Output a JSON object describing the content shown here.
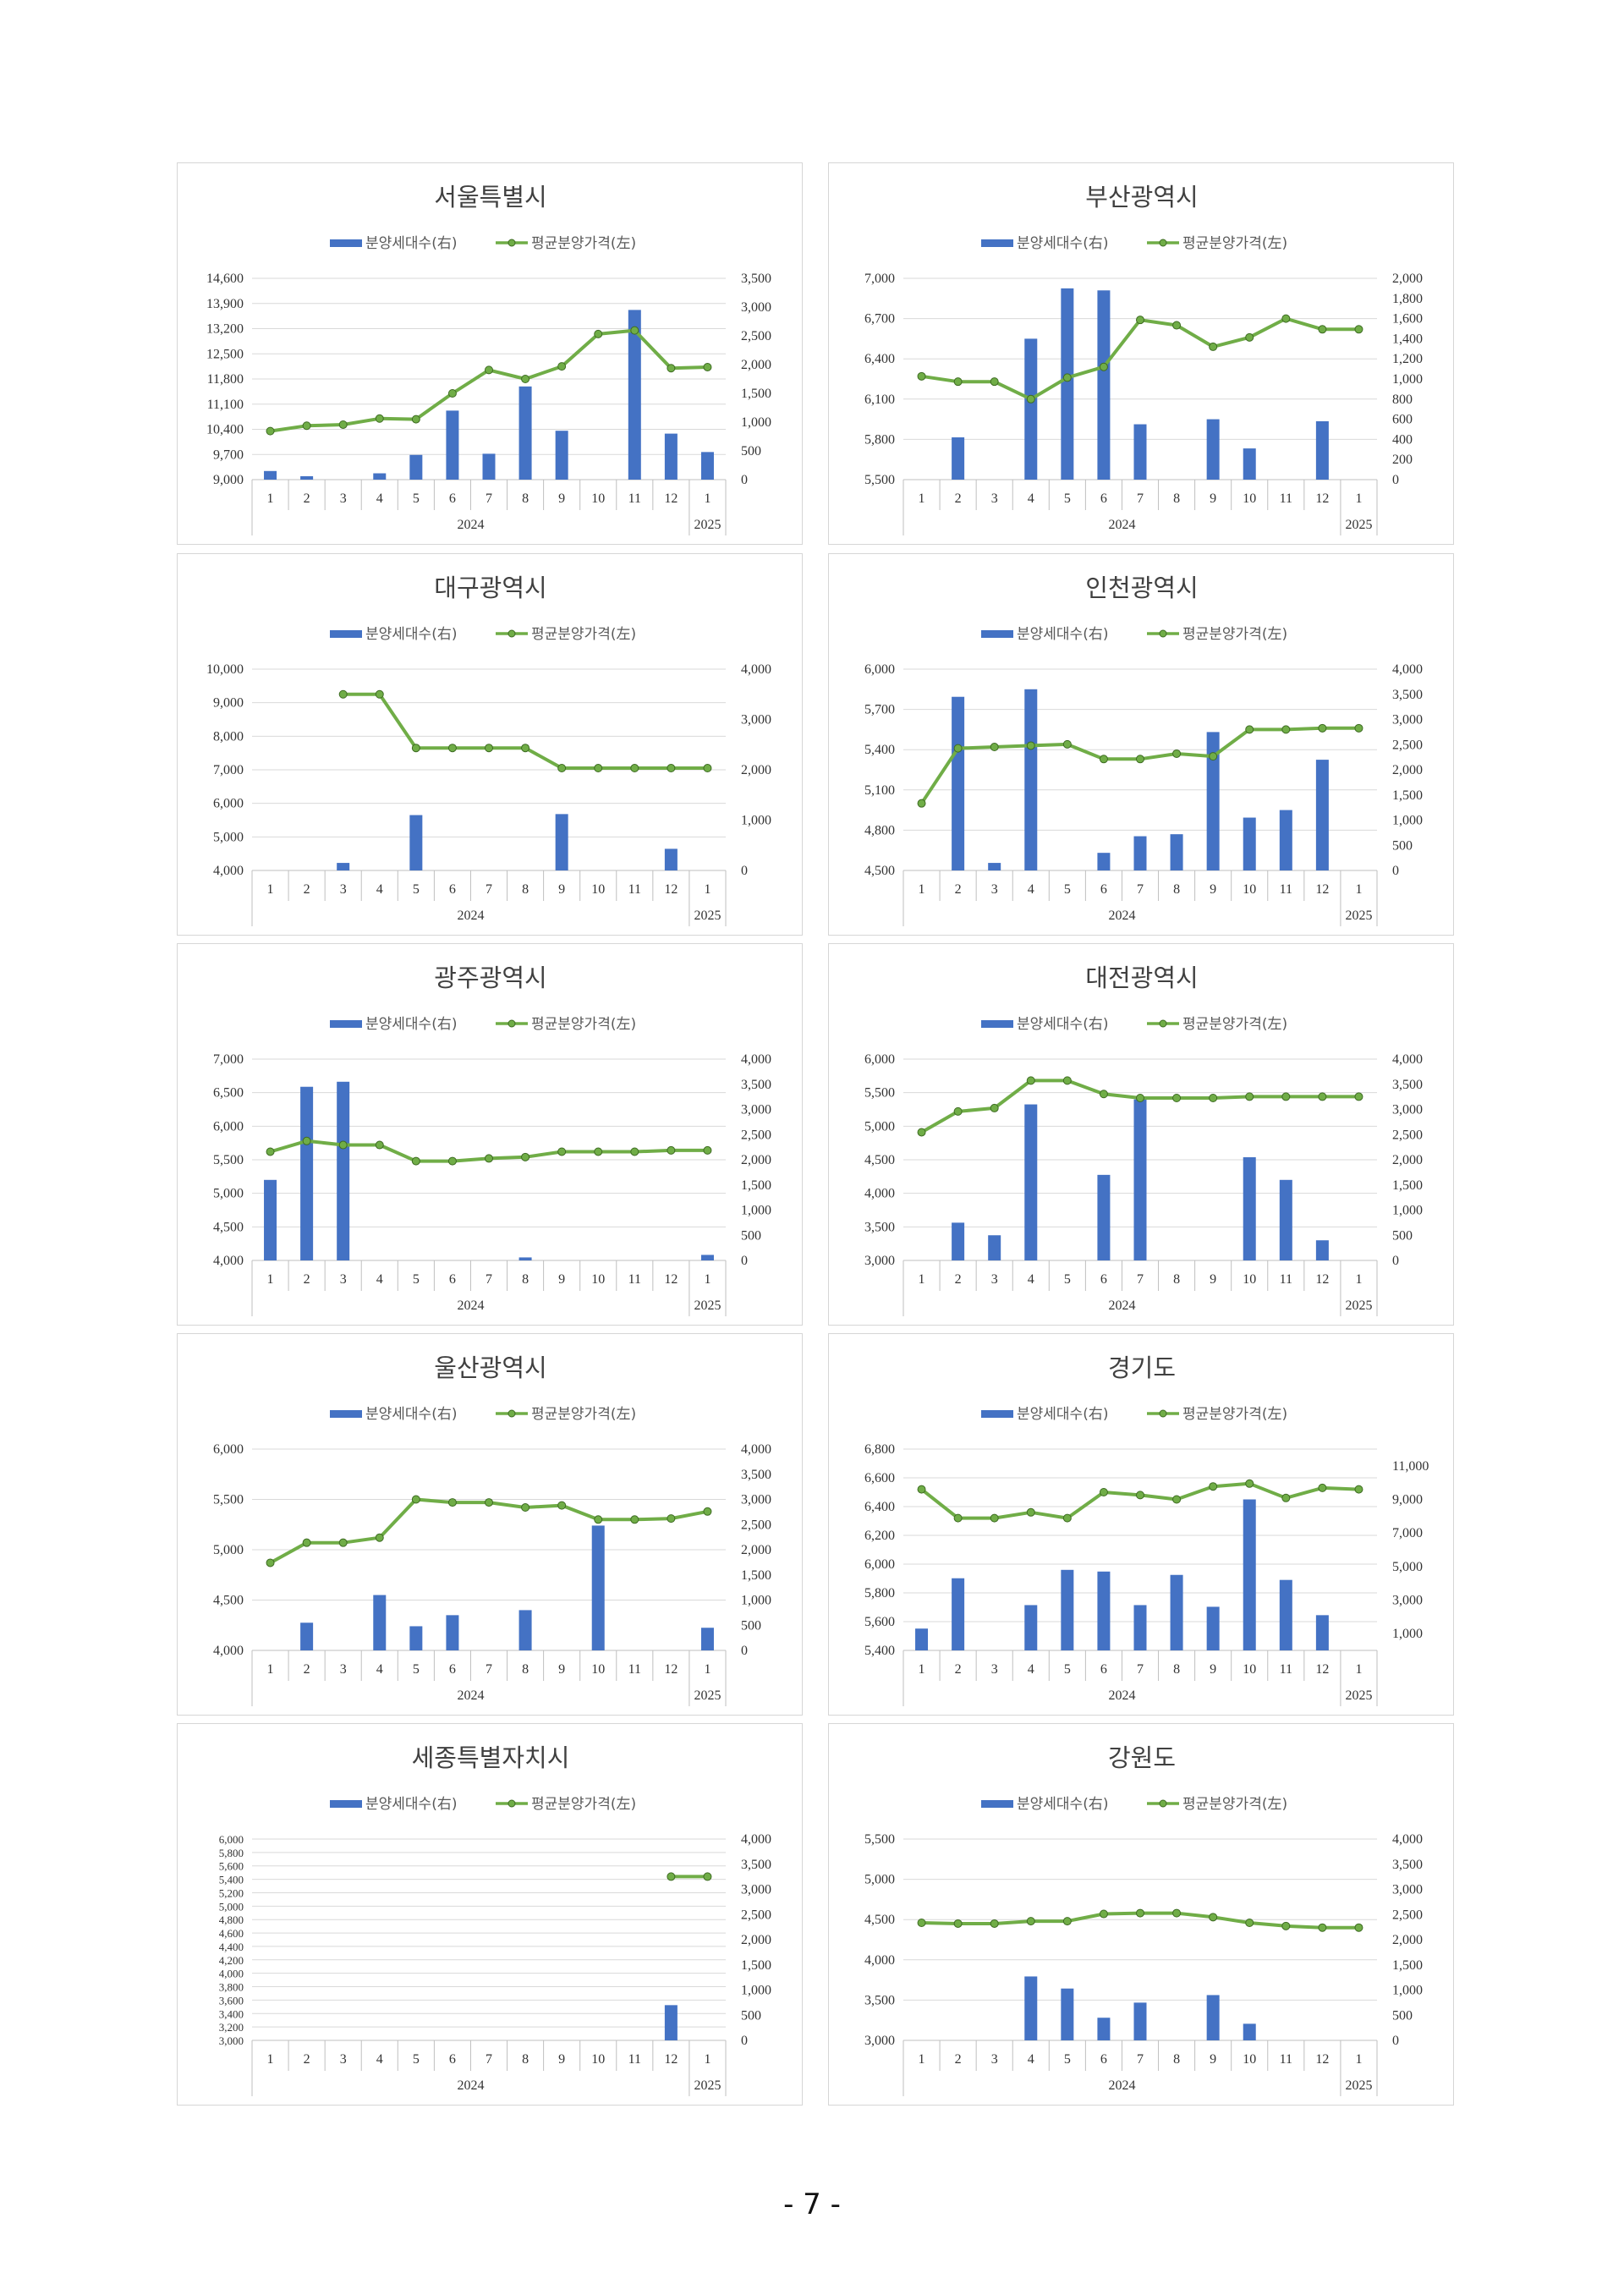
{
  "page": {
    "number": "- 7 -"
  },
  "legend": {
    "bar_label": "분양세대수(右)",
    "line_label": "평균분양가격(左)"
  },
  "colors": {
    "bar": "#4472c4",
    "line": "#70ad47",
    "grid": "#d9d9d9",
    "axis_text": "#595959",
    "title": "#404040"
  },
  "chart_data": [
    {
      "title": "서울특별시",
      "type": "bar+line",
      "categories": [
        "1",
        "2",
        "3",
        "4",
        "5",
        "6",
        "7",
        "8",
        "9",
        "10",
        "11",
        "12",
        "1"
      ],
      "year_labels": [
        "2024",
        "2025"
      ],
      "left_axis": {
        "ticks": [
          "9,000",
          "9,700",
          "10,400",
          "11,100",
          "11,800",
          "12,500",
          "13,200",
          "13,900",
          "14,600"
        ],
        "min": 9000,
        "max": 14600
      },
      "right_axis": {
        "ticks": [
          "0",
          "500",
          "1,000",
          "1,500",
          "2,000",
          "2,500",
          "3,000",
          "3,500"
        ],
        "min": 0,
        "max": 3500
      },
      "series": [
        {
          "name": "분양세대수(右)",
          "type": "bar",
          "values": [
            150,
            60,
            0,
            110,
            430,
            1200,
            450,
            1620,
            850,
            0,
            2950,
            800,
            480
          ]
        },
        {
          "name": "평균분양가격(左)",
          "type": "line",
          "values": [
            10350,
            10500,
            10530,
            10700,
            10680,
            11400,
            12050,
            11800,
            12150,
            13050,
            13150,
            12100,
            12130
          ]
        }
      ]
    },
    {
      "title": "부산광역시",
      "type": "bar+line",
      "categories": [
        "1",
        "2",
        "3",
        "4",
        "5",
        "6",
        "7",
        "8",
        "9",
        "10",
        "11",
        "12",
        "1"
      ],
      "year_labels": [
        "2024",
        "2025"
      ],
      "left_axis": {
        "ticks": [
          "5,500",
          "5,800",
          "6,100",
          "6,400",
          "6,700",
          "7,000"
        ],
        "min": 5500,
        "max": 7000
      },
      "right_axis": {
        "ticks": [
          "0",
          "200",
          "400",
          "600",
          "800",
          "1,000",
          "1,200",
          "1,400",
          "1,600",
          "1,800",
          "2,000"
        ],
        "min": 0,
        "max": 2000
      },
      "series": [
        {
          "name": "분양세대수(右)",
          "type": "bar",
          "values": [
            0,
            420,
            0,
            1400,
            1900,
            1880,
            550,
            0,
            600,
            310,
            0,
            580,
            0
          ]
        },
        {
          "name": "평균분양가격(左)",
          "type": "line",
          "values": [
            6270,
            6230,
            6230,
            6100,
            6260,
            6340,
            6690,
            6650,
            6490,
            6560,
            6700,
            6620,
            6620
          ]
        }
      ]
    },
    {
      "title": "대구광역시",
      "type": "bar+line",
      "categories": [
        "1",
        "2",
        "3",
        "4",
        "5",
        "6",
        "7",
        "8",
        "9",
        "10",
        "11",
        "12",
        "1"
      ],
      "year_labels": [
        "2024",
        "2025"
      ],
      "left_axis": {
        "ticks": [
          "4,000",
          "5,000",
          "6,000",
          "7,000",
          "8,000",
          "9,000",
          "10,000"
        ],
        "min": 4000,
        "max": 10000
      },
      "right_axis": {
        "ticks": [
          "0",
          "1,000",
          "2,000",
          "3,000",
          "4,000"
        ],
        "min": 0,
        "max": 4000
      },
      "series": [
        {
          "name": "분양세대수(右)",
          "type": "bar",
          "values": [
            0,
            0,
            150,
            0,
            1100,
            0,
            0,
            0,
            1120,
            0,
            0,
            430,
            0
          ]
        },
        {
          "name": "평균분양가격(左)",
          "type": "line",
          "values": [
            null,
            null,
            9250,
            9250,
            7650,
            7650,
            7650,
            7650,
            7050,
            7050,
            7050,
            7050,
            7050
          ]
        }
      ]
    },
    {
      "title": "인천광역시",
      "type": "bar+line",
      "categories": [
        "1",
        "2",
        "3",
        "4",
        "5",
        "6",
        "7",
        "8",
        "9",
        "10",
        "11",
        "12",
        "1"
      ],
      "year_labels": [
        "2024",
        "2025"
      ],
      "left_axis": {
        "ticks": [
          "4,500",
          "4,800",
          "5,100",
          "5,400",
          "5,700",
          "6,000"
        ],
        "min": 4500,
        "max": 6000
      },
      "right_axis": {
        "ticks": [
          "0",
          "500",
          "1,000",
          "1,500",
          "2,000",
          "2,500",
          "3,000",
          "3,500",
          "4,000"
        ],
        "min": 0,
        "max": 4000
      },
      "series": [
        {
          "name": "분양세대수(右)",
          "type": "bar",
          "values": [
            0,
            3450,
            150,
            3600,
            0,
            350,
            680,
            720,
            2750,
            1050,
            1200,
            2200,
            0
          ]
        },
        {
          "name": "평균분양가격(左)",
          "type": "line",
          "values": [
            5000,
            5410,
            5420,
            5430,
            5440,
            5330,
            5330,
            5370,
            5350,
            5550,
            5550,
            5560,
            5560
          ]
        }
      ]
    },
    {
      "title": "광주광역시",
      "type": "bar+line",
      "categories": [
        "1",
        "2",
        "3",
        "4",
        "5",
        "6",
        "7",
        "8",
        "9",
        "10",
        "11",
        "12",
        "1"
      ],
      "year_labels": [
        "2024",
        "2025"
      ],
      "left_axis": {
        "ticks": [
          "4,000",
          "4,500",
          "5,000",
          "5,500",
          "6,000",
          "6,500",
          "7,000"
        ],
        "min": 4000,
        "max": 7000
      },
      "right_axis": {
        "ticks": [
          "0",
          "500",
          "1,000",
          "1,500",
          "2,000",
          "2,500",
          "3,000",
          "3,500",
          "4,000"
        ],
        "min": 0,
        "max": 4000
      },
      "series": [
        {
          "name": "분양세대수(右)",
          "type": "bar",
          "values": [
            1600,
            3450,
            3550,
            0,
            0,
            0,
            0,
            60,
            0,
            0,
            0,
            0,
            110
          ]
        },
        {
          "name": "평균분양가격(左)",
          "type": "line",
          "values": [
            5620,
            5780,
            5720,
            5720,
            5480,
            5480,
            5520,
            5540,
            5620,
            5620,
            5620,
            5640,
            5640
          ]
        }
      ]
    },
    {
      "title": "대전광역시",
      "type": "bar+line",
      "categories": [
        "1",
        "2",
        "3",
        "4",
        "5",
        "6",
        "7",
        "8",
        "9",
        "10",
        "11",
        "12",
        "1"
      ],
      "year_labels": [
        "2024",
        "2025"
      ],
      "left_axis": {
        "ticks": [
          "3,000",
          "3,500",
          "4,000",
          "4,500",
          "5,000",
          "5,500",
          "6,000"
        ],
        "min": 3000,
        "max": 6000
      },
      "right_axis": {
        "ticks": [
          "0",
          "500",
          "1,000",
          "1,500",
          "2,000",
          "2,500",
          "3,000",
          "3,500",
          "4,000"
        ],
        "min": 0,
        "max": 4000
      },
      "series": [
        {
          "name": "분양세대수(右)",
          "type": "bar",
          "values": [
            0,
            750,
            500,
            3100,
            0,
            1700,
            3200,
            0,
            0,
            2050,
            1600,
            400,
            0
          ]
        },
        {
          "name": "평균분양가격(左)",
          "type": "line",
          "values": [
            4910,
            5220,
            5270,
            5680,
            5680,
            5480,
            5420,
            5420,
            5420,
            5440,
            5440,
            5440,
            5440
          ]
        }
      ]
    },
    {
      "title": "울산광역시",
      "type": "bar+line",
      "categories": [
        "1",
        "2",
        "3",
        "4",
        "5",
        "6",
        "7",
        "8",
        "9",
        "10",
        "11",
        "12",
        "1"
      ],
      "year_labels": [
        "2024",
        "2025"
      ],
      "left_axis": {
        "ticks": [
          "4,000",
          "4,500",
          "5,000",
          "5,500",
          "6,000"
        ],
        "min": 4000,
        "max": 6000
      },
      "right_axis": {
        "ticks": [
          "0",
          "500",
          "1,000",
          "1,500",
          "2,000",
          "2,500",
          "3,000",
          "3,500",
          "4,000"
        ],
        "min": 0,
        "max": 4000
      },
      "series": [
        {
          "name": "분양세대수(右)",
          "type": "bar",
          "values": [
            0,
            550,
            0,
            1100,
            480,
            700,
            0,
            800,
            0,
            2480,
            0,
            0,
            450
          ]
        },
        {
          "name": "평균분양가격(左)",
          "type": "line",
          "values": [
            4870,
            5070,
            5070,
            5120,
            5500,
            5470,
            5470,
            5420,
            5440,
            5300,
            5300,
            5310,
            5380
          ]
        }
      ]
    },
    {
      "title": "경기도",
      "type": "bar+line",
      "categories": [
        "1",
        "2",
        "3",
        "4",
        "5",
        "6",
        "7",
        "8",
        "9",
        "10",
        "11",
        "12",
        "1"
      ],
      "year_labels": [
        "2024",
        "2025"
      ],
      "left_axis": {
        "ticks": [
          "5,400",
          "5,600",
          "5,800",
          "6,000",
          "6,200",
          "6,400",
          "6,600",
          "6,800"
        ],
        "min": 5400,
        "max": 6800
      },
      "right_axis": {
        "ticks": [
          "1,000",
          "3,000",
          "5,000",
          "7,000",
          "9,000",
          "11,000"
        ],
        "min": 0,
        "max": 12000
      },
      "series": [
        {
          "name": "분양세대수(右)",
          "type": "bar",
          "values": [
            1300,
            4300,
            0,
            2700,
            4800,
            4700,
            2700,
            4500,
            2600,
            9000,
            4200,
            2100,
            0
          ]
        },
        {
          "name": "평균분양가격(左)",
          "type": "line",
          "values": [
            6520,
            6320,
            6320,
            6360,
            6320,
            6500,
            6480,
            6450,
            6540,
            6560,
            6460,
            6530,
            6520
          ]
        }
      ]
    },
    {
      "title": "세종특별자치시",
      "type": "bar+line",
      "categories": [
        "1",
        "2",
        "3",
        "4",
        "5",
        "6",
        "7",
        "8",
        "9",
        "10",
        "11",
        "12",
        "1"
      ],
      "year_labels": [
        "2024",
        "2025"
      ],
      "left_axis": {
        "ticks": [
          "3,000",
          "3,200",
          "3,400",
          "3,600",
          "3,800",
          "4,000",
          "4,200",
          "4,400",
          "4,600",
          "4,800",
          "5,000",
          "5,200",
          "5,400",
          "5,600",
          "5,800",
          "6,000"
        ],
        "min": 3000,
        "max": 6000
      },
      "right_axis": {
        "ticks": [
          "0",
          "500",
          "1,000",
          "1,500",
          "2,000",
          "2,500",
          "3,000",
          "3,500",
          "4,000"
        ],
        "min": 0,
        "max": 4000
      },
      "series": [
        {
          "name": "분양세대수(右)",
          "type": "bar",
          "values": [
            0,
            0,
            0,
            0,
            0,
            0,
            0,
            0,
            0,
            0,
            0,
            700,
            0
          ]
        },
        {
          "name": "평균분양가격(左)",
          "type": "line",
          "values": [
            null,
            null,
            null,
            null,
            null,
            null,
            null,
            null,
            null,
            null,
            null,
            5440,
            5440
          ]
        }
      ]
    },
    {
      "title": "강원도",
      "type": "bar+line",
      "categories": [
        "1",
        "2",
        "3",
        "4",
        "5",
        "6",
        "7",
        "8",
        "9",
        "10",
        "11",
        "12",
        "1"
      ],
      "year_labels": [
        "2024",
        "2025"
      ],
      "left_axis": {
        "ticks": [
          "3,000",
          "3,500",
          "4,000",
          "4,500",
          "5,000",
          "5,500"
        ],
        "min": 3000,
        "max": 5500
      },
      "right_axis": {
        "ticks": [
          "0",
          "500",
          "1,000",
          "1,500",
          "2,000",
          "2,500",
          "3,000",
          "3,500",
          "4,000"
        ],
        "min": 0,
        "max": 4000
      },
      "series": [
        {
          "name": "분양세대수(右)",
          "type": "bar",
          "values": [
            0,
            0,
            0,
            1270,
            1030,
            450,
            750,
            0,
            900,
            330,
            0,
            0,
            0
          ]
        },
        {
          "name": "평균분양가격(左)",
          "type": "line",
          "values": [
            4460,
            4450,
            4450,
            4480,
            4480,
            4570,
            4580,
            4580,
            4530,
            4460,
            4420,
            4400,
            4400
          ]
        }
      ]
    }
  ]
}
